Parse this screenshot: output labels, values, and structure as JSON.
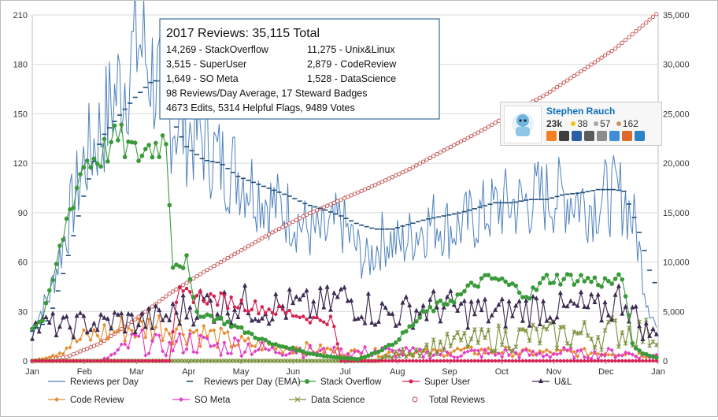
{
  "chart_data": {
    "type": "line",
    "title": "2017 Reviews: 35,115 Total",
    "months": [
      "Jan",
      "Feb",
      "Mar",
      "Apr",
      "May",
      "Jun",
      "Jul",
      "Aug",
      "Sep",
      "Oct",
      "Nov",
      "Dec",
      "Jan"
    ],
    "y_left": {
      "min": 0,
      "max": 210,
      "ticks": [
        "0",
        "30",
        "60",
        "90",
        "120",
        "150",
        "180",
        "210"
      ]
    },
    "y_right": {
      "min": 0,
      "max": 35000,
      "ticks": [
        "0",
        "5,000",
        "10,000",
        "15,000",
        "20,000",
        "25,000",
        "30,000",
        "35,000"
      ]
    },
    "info_lines": [
      [
        "14,269 - StackOverflow",
        "11,275 - Unix&Linux"
      ],
      [
        "3,515 - SuperUser",
        "2,879 - CodeReview"
      ],
      [
        "1,649 - SO Meta",
        "1,528 - DataScience"
      ],
      [
        "98 Reviews/Day Average, 17 Steward Badges",
        ""
      ],
      [
        "4673 Edits,  5314 Helpful Flags,  9489 Votes",
        ""
      ]
    ],
    "series": [
      {
        "name": "Reviews per Day",
        "axis": "left",
        "color": "#4f81bd",
        "keypoints": [
          [
            0,
            20
          ],
          [
            10,
            40
          ],
          [
            20,
            80
          ],
          [
            30,
            120
          ],
          [
            40,
            140
          ],
          [
            50,
            165
          ],
          [
            55,
            175
          ],
          [
            62,
            195
          ],
          [
            70,
            175
          ],
          [
            80,
            150
          ],
          [
            90,
            140
          ],
          [
            100,
            135
          ],
          [
            110,
            120
          ],
          [
            120,
            115
          ],
          [
            130,
            105
          ],
          [
            140,
            95
          ],
          [
            150,
            90
          ],
          [
            160,
            80
          ],
          [
            170,
            75
          ],
          [
            180,
            85
          ],
          [
            188,
            70
          ],
          [
            195,
            60
          ],
          [
            205,
            75
          ],
          [
            215,
            70
          ],
          [
            225,
            80
          ],
          [
            235,
            85
          ],
          [
            245,
            80
          ],
          [
            255,
            85
          ],
          [
            265,
            90
          ],
          [
            275,
            95
          ],
          [
            285,
            95
          ],
          [
            295,
            100
          ],
          [
            305,
            100
          ],
          [
            315,
            100
          ],
          [
            325,
            95
          ],
          [
            335,
            100
          ],
          [
            345,
            100
          ],
          [
            352,
            80
          ],
          [
            358,
            40
          ],
          [
            364,
            20
          ]
        ]
      },
      {
        "name": "Reviews per Day (EMA)",
        "axis": "left",
        "color": "#1f4e79",
        "keypoints": [
          [
            0,
            18
          ],
          [
            10,
            25
          ],
          [
            20,
            60
          ],
          [
            30,
            100
          ],
          [
            40,
            135
          ],
          [
            50,
            148
          ],
          [
            60,
            160
          ],
          [
            70,
            170
          ],
          [
            75,
            170
          ],
          [
            80,
            150
          ],
          [
            90,
            130
          ],
          [
            100,
            122
          ],
          [
            110,
            120
          ],
          [
            120,
            112
          ],
          [
            130,
            108
          ],
          [
            140,
            104
          ],
          [
            150,
            100
          ],
          [
            160,
            95
          ],
          [
            170,
            92
          ],
          [
            180,
            88
          ],
          [
            190,
            83
          ],
          [
            200,
            80
          ],
          [
            210,
            80
          ],
          [
            220,
            83
          ],
          [
            230,
            86
          ],
          [
            240,
            88
          ],
          [
            250,
            90
          ],
          [
            260,
            93
          ],
          [
            270,
            96
          ],
          [
            280,
            96
          ],
          [
            290,
            98
          ],
          [
            300,
            98
          ],
          [
            310,
            101
          ],
          [
            320,
            102
          ],
          [
            330,
            104
          ],
          [
            340,
            104
          ],
          [
            345,
            103
          ],
          [
            350,
            90
          ],
          [
            355,
            75
          ],
          [
            360,
            55
          ],
          [
            364,
            45
          ]
        ]
      },
      {
        "name": "Stack Overflow",
        "axis": "left",
        "color": "#3a9a3a",
        "keypoints": [
          [
            0,
            20
          ],
          [
            6,
            25
          ],
          [
            10,
            40
          ],
          [
            20,
            85
          ],
          [
            30,
            120
          ],
          [
            40,
            125
          ],
          [
            50,
            135
          ],
          [
            60,
            125
          ],
          [
            70,
            130
          ],
          [
            78,
            135
          ],
          [
            80,
            100
          ],
          [
            82,
            60
          ],
          [
            90,
            60
          ],
          [
            95,
            30
          ],
          [
            110,
            25
          ],
          [
            120,
            20
          ],
          [
            130,
            15
          ],
          [
            140,
            10
          ],
          [
            150,
            8
          ],
          [
            160,
            5
          ],
          [
            170,
            3
          ],
          [
            180,
            2
          ],
          [
            190,
            1
          ],
          [
            200,
            5
          ],
          [
            210,
            10
          ],
          [
            220,
            20
          ],
          [
            230,
            30
          ],
          [
            240,
            35
          ],
          [
            250,
            40
          ],
          [
            260,
            48
          ],
          [
            270,
            50
          ],
          [
            280,
            45
          ],
          [
            290,
            40
          ],
          [
            300,
            50
          ],
          [
            310,
            50
          ],
          [
            320,
            50
          ],
          [
            330,
            48
          ],
          [
            340,
            48
          ],
          [
            345,
            50
          ],
          [
            350,
            10
          ],
          [
            355,
            5
          ],
          [
            364,
            2
          ]
        ]
      },
      {
        "name": "Super User",
        "axis": "left",
        "color": "#d6204f",
        "keypoints": [
          [
            0,
            0
          ],
          [
            80,
            0
          ],
          [
            85,
            40
          ],
          [
            95,
            40
          ],
          [
            105,
            38
          ],
          [
            115,
            36
          ],
          [
            125,
            34
          ],
          [
            135,
            32
          ],
          [
            145,
            30
          ],
          [
            155,
            28
          ],
          [
            165,
            25
          ],
          [
            175,
            25
          ],
          [
            180,
            0
          ],
          [
            364,
            0
          ]
        ]
      },
      {
        "name": "U&L",
        "axis": "left",
        "color": "#3c2a52",
        "keypoints": [
          [
            0,
            20
          ],
          [
            10,
            22
          ],
          [
            20,
            20
          ],
          [
            30,
            23
          ],
          [
            40,
            22
          ],
          [
            50,
            25
          ],
          [
            60,
            23
          ],
          [
            70,
            25
          ],
          [
            80,
            27
          ],
          [
            90,
            32
          ],
          [
            100,
            35
          ],
          [
            110,
            33
          ],
          [
            120,
            35
          ],
          [
            130,
            33
          ],
          [
            140,
            32
          ],
          [
            150,
            33
          ],
          [
            160,
            32
          ],
          [
            170,
            33
          ],
          [
            180,
            38
          ],
          [
            190,
            35
          ],
          [
            200,
            30
          ],
          [
            210,
            28
          ],
          [
            220,
            30
          ],
          [
            230,
            32
          ],
          [
            240,
            33
          ],
          [
            250,
            30
          ],
          [
            260,
            30
          ],
          [
            270,
            28
          ],
          [
            280,
            30
          ],
          [
            290,
            32
          ],
          [
            300,
            33
          ],
          [
            310,
            30
          ],
          [
            320,
            32
          ],
          [
            330,
            30
          ],
          [
            340,
            35
          ],
          [
            345,
            40
          ],
          [
            350,
            30
          ],
          [
            355,
            20
          ],
          [
            364,
            15
          ]
        ]
      },
      {
        "name": "Code Review",
        "axis": "left",
        "color": "#e68a2e",
        "keypoints": [
          [
            0,
            0
          ],
          [
            15,
            5
          ],
          [
            25,
            12
          ],
          [
            35,
            15
          ],
          [
            45,
            18
          ],
          [
            55,
            20
          ],
          [
            65,
            20
          ],
          [
            75,
            22
          ],
          [
            85,
            20
          ],
          [
            95,
            18
          ],
          [
            105,
            15
          ],
          [
            115,
            12
          ],
          [
            125,
            10
          ],
          [
            135,
            10
          ],
          [
            145,
            8
          ],
          [
            155,
            8
          ],
          [
            165,
            7
          ],
          [
            175,
            6
          ],
          [
            185,
            5
          ],
          [
            195,
            5
          ],
          [
            205,
            5
          ],
          [
            215,
            5
          ],
          [
            225,
            5
          ],
          [
            235,
            5
          ],
          [
            245,
            6
          ],
          [
            255,
            6
          ],
          [
            265,
            6
          ],
          [
            275,
            6
          ],
          [
            285,
            5
          ],
          [
            295,
            5
          ],
          [
            305,
            5
          ],
          [
            315,
            5
          ],
          [
            325,
            5
          ],
          [
            335,
            5
          ],
          [
            345,
            5
          ],
          [
            355,
            4
          ],
          [
            364,
            3
          ]
        ]
      },
      {
        "name": "SO Meta",
        "axis": "left",
        "color": "#e33cc4",
        "keypoints": [
          [
            0,
            0
          ],
          [
            40,
            0
          ],
          [
            50,
            5
          ],
          [
            60,
            12
          ],
          [
            70,
            10
          ],
          [
            80,
            8
          ],
          [
            90,
            12
          ],
          [
            100,
            10
          ],
          [
            110,
            8
          ],
          [
            120,
            10
          ],
          [
            130,
            8
          ],
          [
            140,
            6
          ],
          [
            150,
            8
          ],
          [
            160,
            6
          ],
          [
            170,
            5
          ],
          [
            180,
            5
          ],
          [
            190,
            5
          ],
          [
            200,
            6
          ],
          [
            210,
            5
          ],
          [
            220,
            5
          ],
          [
            230,
            4
          ],
          [
            240,
            5
          ],
          [
            250,
            4
          ],
          [
            260,
            5
          ],
          [
            270,
            4
          ],
          [
            280,
            5
          ],
          [
            290,
            4
          ],
          [
            300,
            4
          ],
          [
            310,
            5
          ],
          [
            320,
            4
          ],
          [
            330,
            4
          ],
          [
            340,
            5
          ],
          [
            350,
            4
          ],
          [
            364,
            3
          ]
        ]
      },
      {
        "name": "Data Science",
        "axis": "left",
        "color": "#7a8f3a",
        "keypoints": [
          [
            0,
            0
          ],
          [
            200,
            0
          ],
          [
            210,
            3
          ],
          [
            220,
            6
          ],
          [
            230,
            8
          ],
          [
            240,
            10
          ],
          [
            250,
            12
          ],
          [
            260,
            12
          ],
          [
            270,
            14
          ],
          [
            280,
            14
          ],
          [
            290,
            15
          ],
          [
            300,
            15
          ],
          [
            310,
            16
          ],
          [
            320,
            16
          ],
          [
            330,
            16
          ],
          [
            340,
            18
          ],
          [
            350,
            18
          ],
          [
            364,
            15
          ]
        ]
      },
      {
        "name": "Total Reviews",
        "axis": "right",
        "color": "#c0504d",
        "keypoints": [
          [
            0,
            0
          ],
          [
            20,
            400
          ],
          [
            40,
            1800
          ],
          [
            60,
            4200
          ],
          [
            80,
            6800
          ],
          [
            100,
            9000
          ],
          [
            120,
            11000
          ],
          [
            140,
            13000
          ],
          [
            160,
            14800
          ],
          [
            180,
            16300
          ],
          [
            200,
            17800
          ],
          [
            220,
            19400
          ],
          [
            240,
            21300
          ],
          [
            260,
            23100
          ],
          [
            280,
            25100
          ],
          [
            300,
            27000
          ],
          [
            320,
            29300
          ],
          [
            340,
            31600
          ],
          [
            364,
            35100
          ]
        ]
      }
    ]
  },
  "profile": {
    "name": "Stephen Rauch",
    "reputation": "23k",
    "gold": "38",
    "silver": "57",
    "bronze": "162",
    "gold_color": "#f1c40f",
    "silver_color": "#a7a7a7",
    "bronze_color": "#c9965a",
    "site_icons": [
      "stackoverflow-icon",
      "unix-linux-icon",
      "superuser-icon",
      "codereview-icon",
      "meta-icon",
      "datascience-icon",
      "askubuntu-icon",
      "serverfault-icon"
    ],
    "site_colors": [
      "#f48024",
      "#3d3d3d",
      "#2c5ea8",
      "#5b5b5b",
      "#8c8c8c",
      "#3f8dd6",
      "#dd6a2a",
      "#2a84c6"
    ]
  }
}
